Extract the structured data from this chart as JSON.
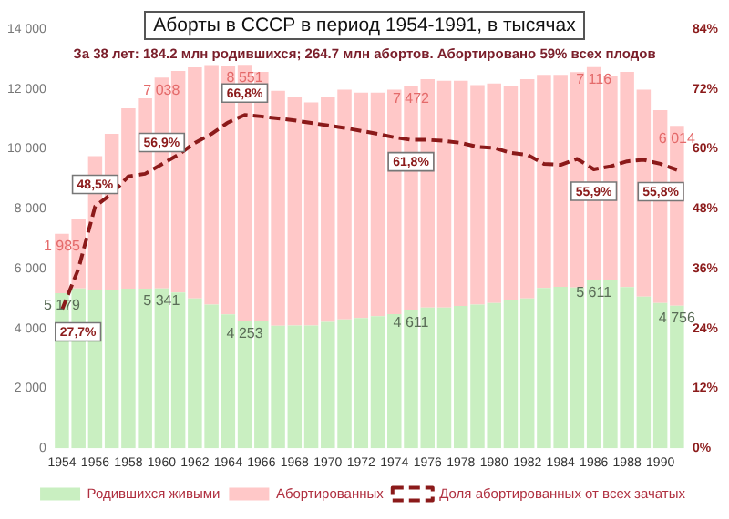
{
  "chart_data": {
    "type": "bar",
    "title": "Аборты в СССР в период 1954-1991, в тысячах",
    "subtitle": "За 38 лет: 184.2 млн родившихся; 264.7 млн абортов. Абортировано 59% всех плодов",
    "categories": [
      "1954",
      null,
      "1956",
      null,
      "1958",
      null,
      "1960",
      null,
      "1962",
      null,
      "1964",
      null,
      "1966",
      null,
      "1968",
      null,
      "1970",
      null,
      "1972",
      null,
      "1974",
      null,
      "1976",
      null,
      "1978",
      null,
      "1980",
      null,
      "1982",
      null,
      "1984",
      null,
      "1986",
      null,
      "1988",
      null,
      "1990",
      null
    ],
    "stacked": true,
    "legend": "bottom",
    "ylim": [
      0,
      14000
    ],
    "yticks": [
      {
        "value": 0,
        "label": "0"
      },
      {
        "value": 2000,
        "label": "2 000"
      },
      {
        "value": 4000,
        "label": "4 000"
      },
      {
        "value": 6000,
        "label": "6 000"
      },
      {
        "value": 8000,
        "label": "8 000"
      },
      {
        "value": 10000,
        "label": "10 000"
      },
      {
        "value": 12000,
        "label": "12 000"
      },
      {
        "value": 14000,
        "label": "14 000"
      }
    ],
    "y2lim": [
      0,
      84
    ],
    "y2ticks": [
      {
        "value": 0,
        "label": "0%"
      },
      {
        "value": 12,
        "label": "12%"
      },
      {
        "value": 24,
        "label": "24%"
      },
      {
        "value": 36,
        "label": "36%"
      },
      {
        "value": 48,
        "label": "48%"
      },
      {
        "value": 60,
        "label": "60%"
      },
      {
        "value": 72,
        "label": "72%"
      },
      {
        "value": 84,
        "label": "84%"
      }
    ],
    "series": [
      {
        "name": "Родившихся живыми",
        "color": "#c9efc1",
        "values": [
          5179,
          5340,
          5300,
          5290,
          5330,
          5330,
          5341,
          5200,
          5000,
          4800,
          4470,
          4253,
          4260,
          4090,
          4100,
          4100,
          4220,
          4300,
          4350,
          4410,
          4480,
          4611,
          4700,
          4700,
          4750,
          4800,
          4850,
          4950,
          5000,
          5350,
          5390,
          5370,
          5611,
          5600,
          5380,
          5060,
          4850,
          4756
        ],
        "value_labels": [
          "5 179",
          null,
          null,
          null,
          null,
          null,
          "5 341",
          null,
          null,
          null,
          null,
          "4 253",
          null,
          null,
          null,
          null,
          null,
          null,
          null,
          null,
          null,
          "4 611",
          null,
          null,
          null,
          null,
          null,
          null,
          null,
          null,
          null,
          null,
          "5 611",
          null,
          null,
          null,
          null,
          "4 756"
        ]
      },
      {
        "name": "Абортированных",
        "color": "#ffc8c8",
        "values": [
          1985,
          2310,
          4460,
          5210,
          6020,
          6360,
          7038,
          7400,
          7720,
          8000,
          8290,
          8551,
          8310,
          7850,
          7640,
          7450,
          7520,
          7680,
          7530,
          7470,
          7500,
          7472,
          7630,
          7570,
          7520,
          7330,
          7330,
          7130,
          7330,
          7120,
          7080,
          7190,
          7116,
          6830,
          7190,
          6920,
          6440,
          6014
        ],
        "value_labels": [
          "1 985",
          null,
          null,
          null,
          null,
          null,
          "7 038",
          null,
          null,
          null,
          null,
          "8 551",
          null,
          null,
          null,
          null,
          null,
          null,
          null,
          null,
          null,
          "7 472",
          null,
          null,
          null,
          null,
          null,
          null,
          null,
          null,
          null,
          null,
          "7 116",
          null,
          null,
          null,
          null,
          "6 014"
        ]
      },
      {
        "name": "Доля абортированных от всех зачатых",
        "type": "line",
        "axis": "y2",
        "line_style": "dashed",
        "color": "#8b1a1a",
        "values": [
          27.7,
          36,
          48.5,
          51,
          54.5,
          55,
          56.9,
          58.8,
          61.2,
          63,
          65.3,
          66.8,
          66.5,
          66.1,
          65.7,
          65.2,
          64.7,
          64.2,
          63.6,
          63,
          62.3,
          61.8,
          61.8,
          61.6,
          61.2,
          60.4,
          60.2,
          59.2,
          58.8,
          57,
          56.8,
          58,
          55.9,
          56.5,
          57.5,
          57.8,
          57,
          55.8
        ],
        "value_labels": [
          "27,7%",
          null,
          "48,5%",
          null,
          null,
          null,
          "56,9%",
          null,
          null,
          null,
          null,
          "66,8%",
          null,
          null,
          null,
          null,
          null,
          null,
          null,
          null,
          null,
          "61,8%",
          null,
          null,
          null,
          null,
          null,
          null,
          null,
          null,
          null,
          null,
          "55,9%",
          null,
          null,
          null,
          null,
          "55,8%"
        ]
      }
    ]
  }
}
